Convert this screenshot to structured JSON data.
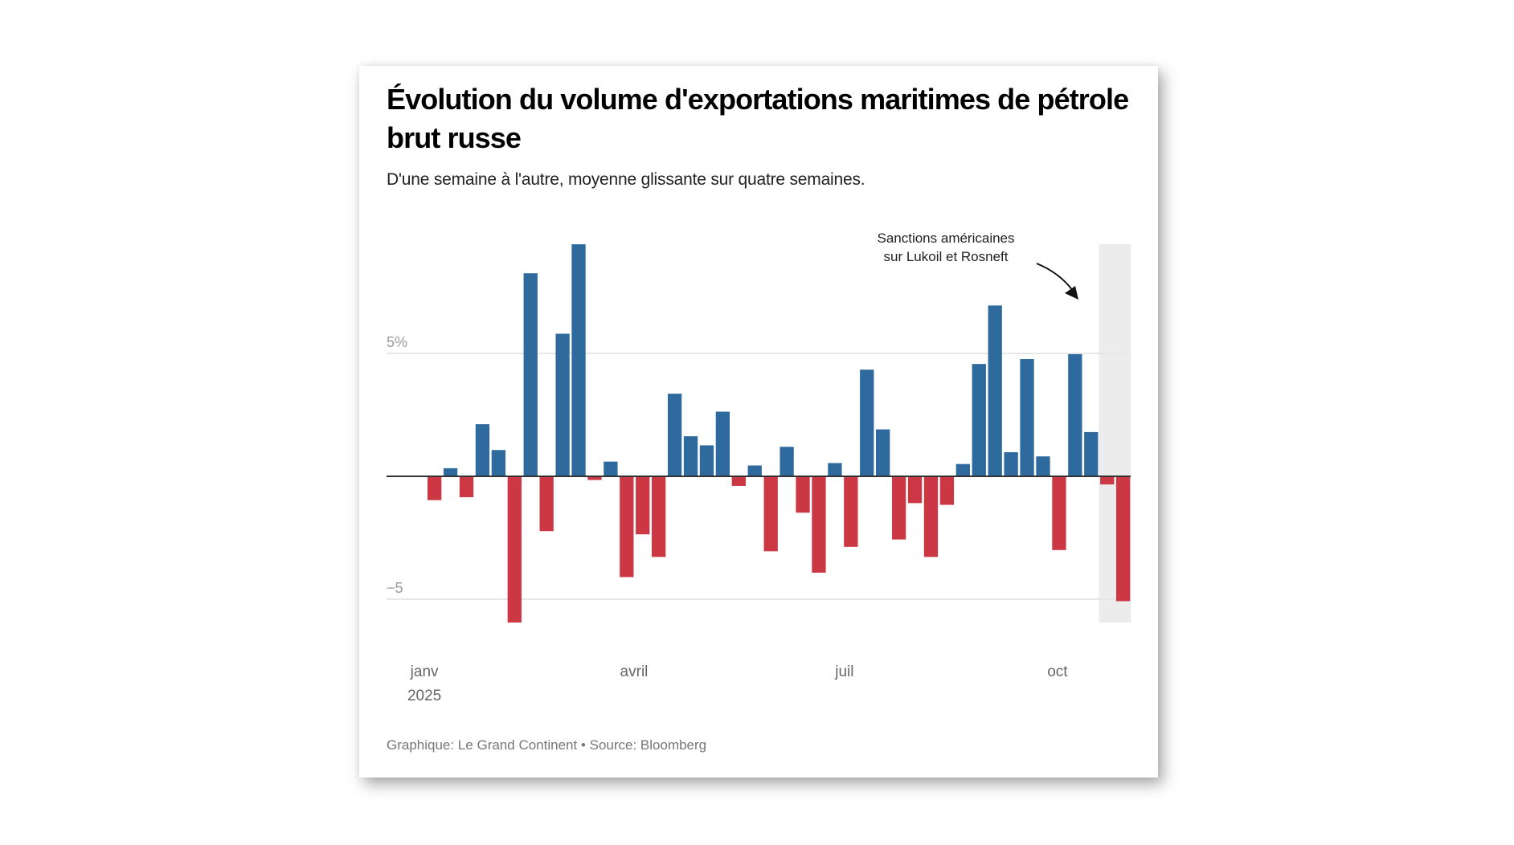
{
  "colors": {
    "positive": "#2e6a9e",
    "negative": "#cc3744",
    "zero_line": "#333333",
    "gridline": "#e6e6e6",
    "highlight_band": "#ececec"
  },
  "header": {
    "title": "Évolution du volume d'exportations maritimes de pétrole brut russe",
    "subtitle": "D'une semaine à l'autre, moyenne glissante sur quatre semaines."
  },
  "footer": {
    "credit": "Graphique: Le Grand Continent • Source: Bloomberg"
  },
  "chart_data": {
    "type": "bar",
    "title": "Évolution du volume d'exportations maritimes de pétrole brut russe",
    "subtitle": "D'une semaine à l'autre, moyenne glissante sur quatre semaines.",
    "xlabel": "",
    "ylabel": "",
    "unit": "%",
    "frequency": "weekly",
    "ylim": [
      -5.95,
      9.45
    ],
    "grid": true,
    "y_ticks": [
      {
        "value": 5,
        "label": "5%"
      },
      {
        "value": -5,
        "label": "−5"
      }
    ],
    "x_ticks": [
      {
        "label": "janv",
        "sublabel": "2025"
      },
      {
        "label": "avril",
        "sublabel": ""
      },
      {
        "label": "juil",
        "sublabel": ""
      },
      {
        "label": "oct",
        "sublabel": ""
      }
    ],
    "values": [
      -0.97,
      0.33,
      -0.85,
      2.12,
      1.07,
      -5.95,
      8.26,
      -2.23,
      5.8,
      9.44,
      -0.15,
      0.6,
      -4.1,
      -2.36,
      -3.28,
      3.36,
      1.63,
      1.26,
      2.63,
      -0.39,
      0.44,
      -3.05,
      1.2,
      -1.48,
      -3.92,
      0.54,
      -2.87,
      4.34,
      1.91,
      -2.57,
      -1.09,
      -3.28,
      -1.16,
      0.5,
      4.57,
      6.95,
      0.98,
      4.77,
      0.81,
      -3.0,
      4.97,
      1.8,
      -0.33,
      -5.08
    ],
    "highlight": {
      "from_index": 42,
      "to_index": 43,
      "annotation": [
        "Sanctions américaines",
        "sur Lukoil et Rosneft"
      ]
    },
    "legend": "none"
  }
}
